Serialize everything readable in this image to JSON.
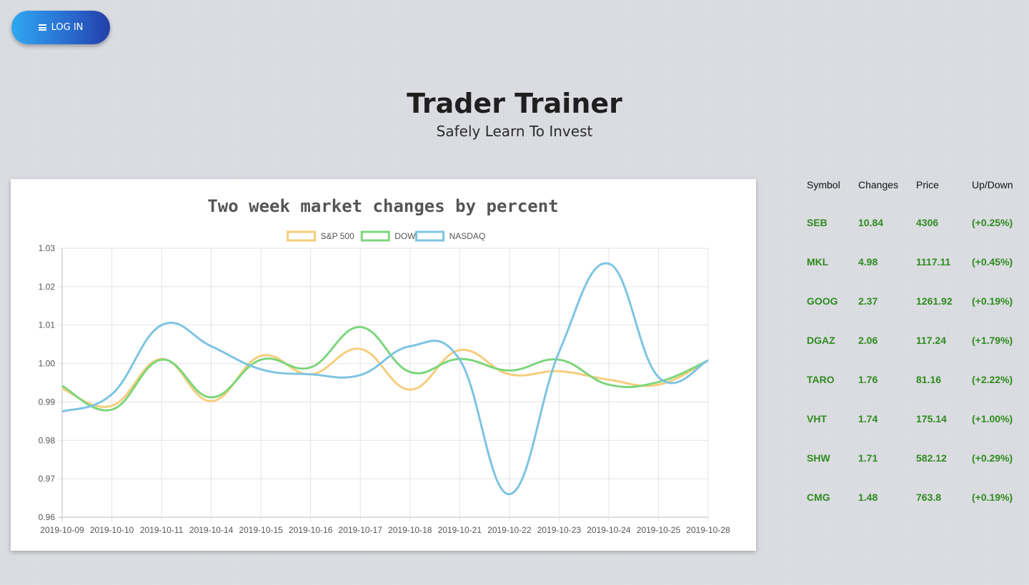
{
  "header": {
    "login_label": "LOG IN",
    "title": "Trader Trainer",
    "subtitle": "Safely Learn To Invest"
  },
  "chart_data": {
    "type": "line",
    "title": "Two week market changes by percent",
    "x": [
      "2019-10-09",
      "2019-10-10",
      "2019-10-11",
      "2019-10-14",
      "2019-10-15",
      "2019-10-16",
      "2019-10-17",
      "2019-10-18",
      "2019-10-21",
      "2019-10-22",
      "2019-10-23",
      "2019-10-24",
      "2019-10-25",
      "2019-10-28"
    ],
    "ylim": [
      0.96,
      1.03
    ],
    "yticks": [
      "1.03",
      "1.02",
      "1.01",
      "1.00",
      "0.99",
      "0.98",
      "0.97",
      "0.96"
    ],
    "grid": true,
    "legend": "top",
    "series": [
      {
        "name": "S&P 500",
        "color": "#f6cd7c",
        "values": [
          0.9935,
          0.989,
          1.0012,
          0.9902,
          1.002,
          0.9972,
          1.0038,
          0.9932,
          1.0035,
          0.9972,
          0.998,
          0.9958,
          0.9945,
          1.0008
        ]
      },
      {
        "name": "DOW",
        "color": "#7cd67c",
        "values": [
          0.9942,
          0.988,
          1.001,
          0.9912,
          1.001,
          0.999,
          1.0095,
          0.9978,
          1.0012,
          0.9982,
          1.001,
          0.9945,
          0.9952,
          1.0008
        ]
      },
      {
        "name": "NASDAQ",
        "color": "#7ec4e2",
        "values": [
          0.9875,
          0.992,
          1.01,
          1.0045,
          0.9985,
          0.9972,
          0.997,
          1.0045,
          1.001,
          0.966,
          1.003,
          1.026,
          0.9965,
          1.0008
        ]
      }
    ]
  },
  "tickers": {
    "headers": [
      "Symbol",
      "Changes",
      "Price",
      "Up/Down"
    ],
    "rows": [
      {
        "symbol": "SEB",
        "change": "10.84",
        "price": "4306",
        "updown": "(+0.25%)"
      },
      {
        "symbol": "MKL",
        "change": "4.98",
        "price": "1117.11",
        "updown": "(+0.45%)"
      },
      {
        "symbol": "GOOG",
        "change": "2.37",
        "price": "1261.92",
        "updown": "(+0.19%)"
      },
      {
        "symbol": "DGAZ",
        "change": "2.06",
        "price": "117.24",
        "updown": "(+1.79%)"
      },
      {
        "symbol": "TARO",
        "change": "1.76",
        "price": "81.16",
        "updown": "(+2.22%)"
      },
      {
        "symbol": "VHT",
        "change": "1.74",
        "price": "175.14",
        "updown": "(+1.00%)"
      },
      {
        "symbol": "SHW",
        "change": "1.71",
        "price": "582.12",
        "updown": "(+0.29%)"
      },
      {
        "symbol": "CMG",
        "change": "1.48",
        "price": "763.8",
        "updown": "(+0.19%)"
      }
    ]
  }
}
